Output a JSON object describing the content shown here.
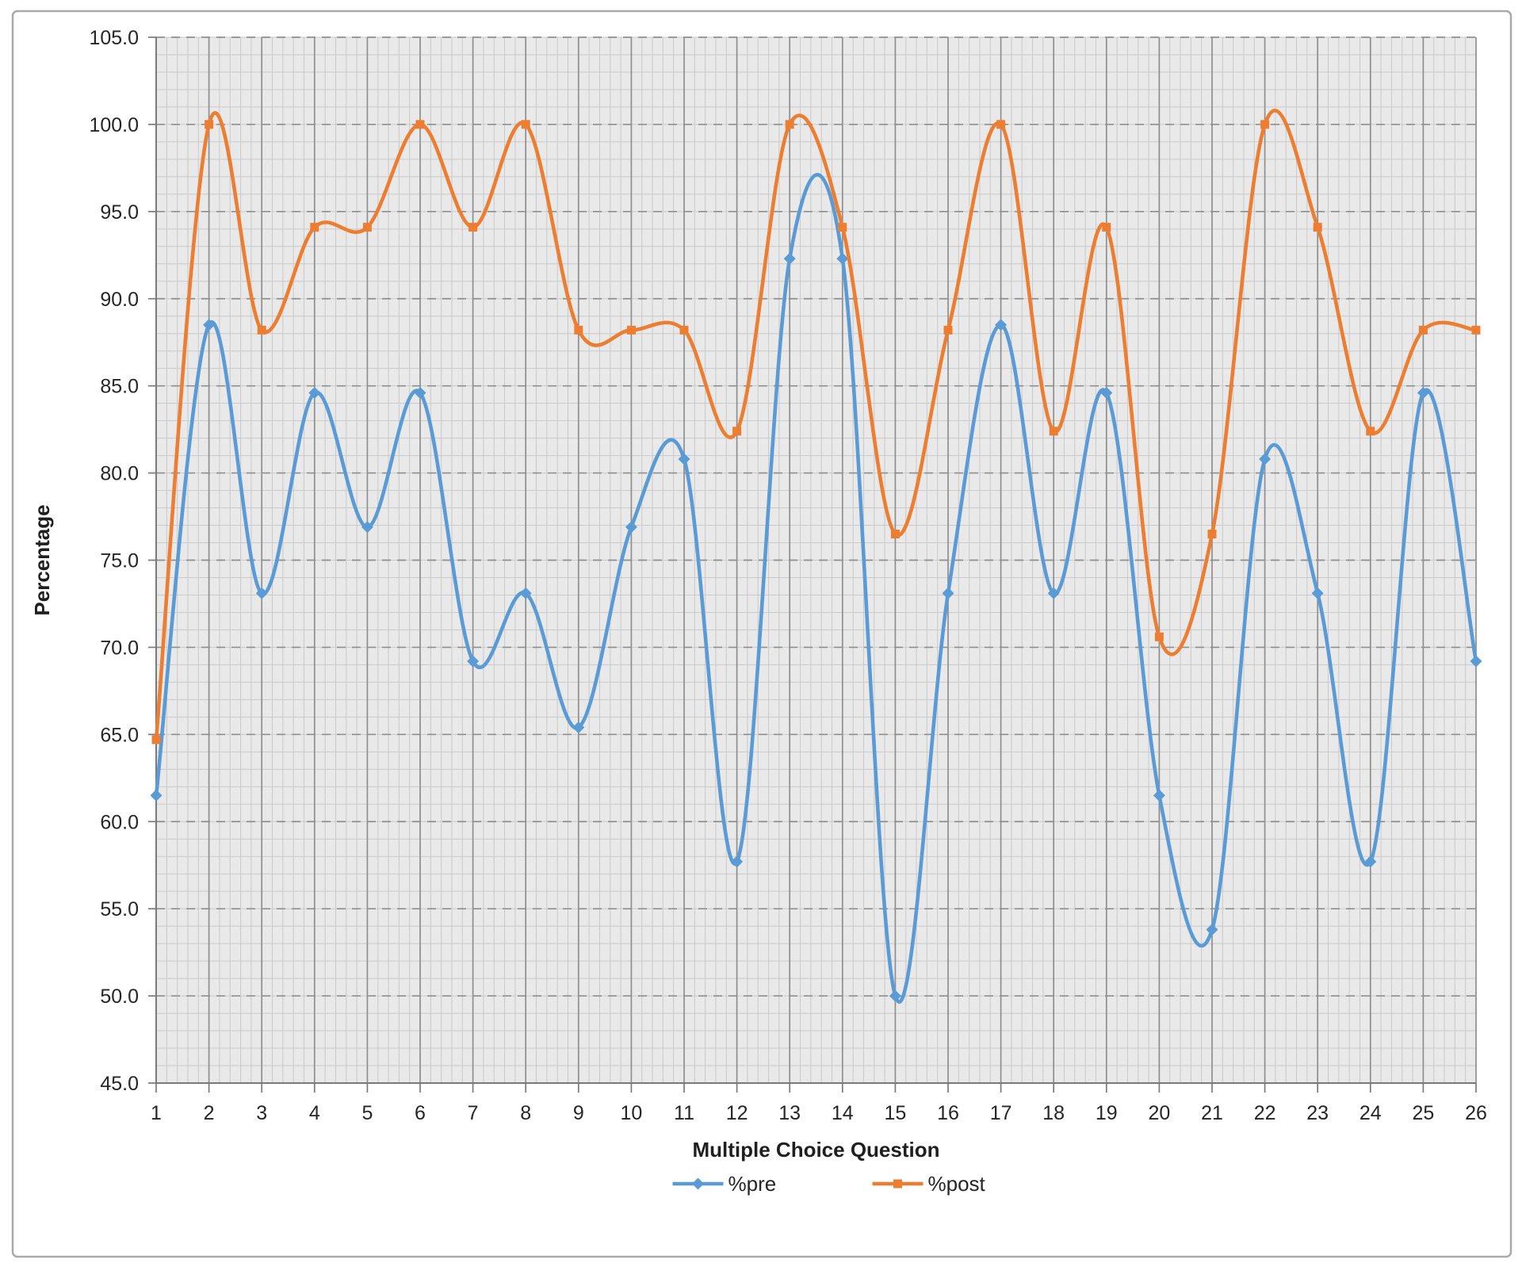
{
  "window": {
    "background_color": "#ffffff",
    "border_color": "#a9a9a9"
  },
  "chart_data": {
    "type": "line",
    "title": "",
    "xlabel": "Multiple Choice Question",
    "ylabel": "Percentage",
    "x_labels": [
      "1",
      "2",
      "3",
      "4",
      "5",
      "6",
      "7",
      "8",
      "9",
      "10",
      "11",
      "12",
      "13",
      "14",
      "15",
      "16",
      "17",
      "18",
      "19",
      "20",
      "21",
      "22",
      "23",
      "24",
      "25",
      "26"
    ],
    "ylim": [
      45,
      105
    ],
    "ytick_step": 5,
    "ytick_labels": [
      "105.0",
      "100.0",
      "95.0",
      "90.0",
      "85.0",
      "80.0",
      "75.0",
      "70.0",
      "65.0",
      "60.0",
      "55.0",
      "50.0",
      "45.0"
    ],
    "grid": {
      "minor": true,
      "major": true,
      "plot_background": "#e9e9e9",
      "minor_color": "#c9c9c9",
      "major_color": "#8f8f8f",
      "axis_color": "#7a7a7a",
      "major_horizontal_dashed": true,
      "minor_divisions_x": 5,
      "minor_divisions_y": 5
    },
    "legend_position": "bottom",
    "line_smoothing": "spline",
    "series": [
      {
        "name": "%pre",
        "color": "#5b9bd5",
        "marker": "diamond",
        "values": [
          61.5,
          88.5,
          73.1,
          84.6,
          76.9,
          84.6,
          69.2,
          73.1,
          65.4,
          76.9,
          80.8,
          57.7,
          92.3,
          92.3,
          50.0,
          73.1,
          88.5,
          73.1,
          84.6,
          61.5,
          53.8,
          80.8,
          73.1,
          57.7,
          84.6,
          69.2
        ]
      },
      {
        "name": "%post",
        "color": "#ed7d31",
        "marker": "square",
        "values": [
          64.7,
          100.0,
          88.2,
          94.1,
          94.1,
          100.0,
          94.1,
          100.0,
          88.2,
          88.2,
          88.2,
          82.4,
          100.0,
          94.1,
          76.5,
          88.2,
          100.0,
          82.4,
          94.1,
          70.6,
          76.5,
          100.0,
          94.1,
          82.4,
          88.2,
          88.2
        ]
      }
    ]
  }
}
